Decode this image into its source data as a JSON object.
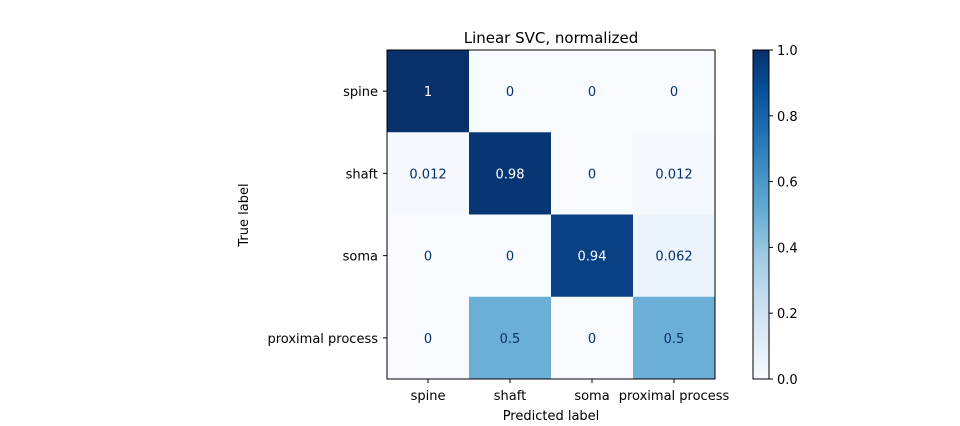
{
  "chart_data": {
    "type": "heatmap",
    "title": "Linear SVC, normalized",
    "xlabel": "Predicted label",
    "ylabel": "True label",
    "x_categories": [
      "spine",
      "shaft",
      "soma",
      "proximal process"
    ],
    "y_categories": [
      "spine",
      "shaft",
      "soma",
      "proximal process"
    ],
    "values": [
      [
        1,
        0,
        0,
        0
      ],
      [
        0.012,
        0.98,
        0,
        0.012
      ],
      [
        0,
        0,
        0.94,
        0.062
      ],
      [
        0,
        0.5,
        0,
        0.5
      ]
    ],
    "cell_labels": [
      [
        "1",
        "0",
        "0",
        "0"
      ],
      [
        "0.012",
        "0.98",
        "0",
        "0.012"
      ],
      [
        "0",
        "0",
        "0.94",
        "0.062"
      ],
      [
        "0",
        "0.5",
        "0",
        "0.5"
      ]
    ],
    "colormap": "Blues",
    "vlim": [
      0,
      1
    ],
    "colorbar_ticks": [
      "0.0",
      "0.2",
      "0.4",
      "0.6",
      "0.8",
      "1.0"
    ],
    "grid": false
  }
}
